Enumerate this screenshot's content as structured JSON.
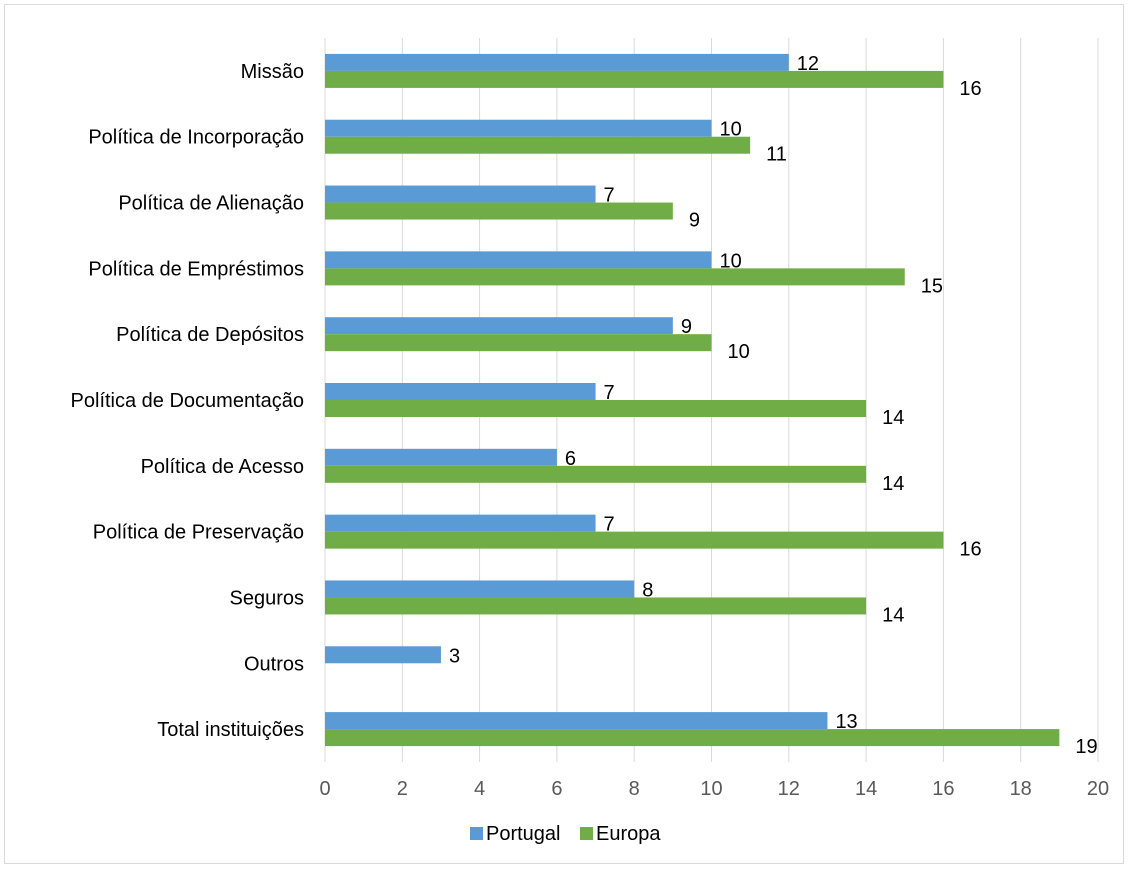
{
  "chart_data": {
    "type": "bar",
    "orientation": "horizontal",
    "categories": [
      "Missão",
      "Política de Incorporação",
      "Política de Alienação",
      "Política de Empréstimos",
      "Política de Depósitos",
      "Política de Documentação",
      "Política de Acesso",
      "Política de Preservação",
      "Seguros",
      "Outros",
      "Total instituições"
    ],
    "series": [
      {
        "name": "Portugal",
        "color": "#5b9bd5",
        "values": [
          12,
          10,
          7,
          10,
          9,
          7,
          6,
          7,
          8,
          3,
          13
        ]
      },
      {
        "name": "Europa",
        "color": "#70ad47",
        "values": [
          16,
          11,
          9,
          15,
          10,
          14,
          14,
          16,
          14,
          null,
          19
        ]
      }
    ],
    "xlim": [
      0,
      20
    ],
    "xticks": [
      "0",
      "2",
      "4",
      "6",
      "8",
      "10",
      "12",
      "14",
      "16",
      "18",
      "20"
    ],
    "grid": true,
    "legend_position": "bottom",
    "title": "",
    "xlabel": "",
    "ylabel": ""
  }
}
